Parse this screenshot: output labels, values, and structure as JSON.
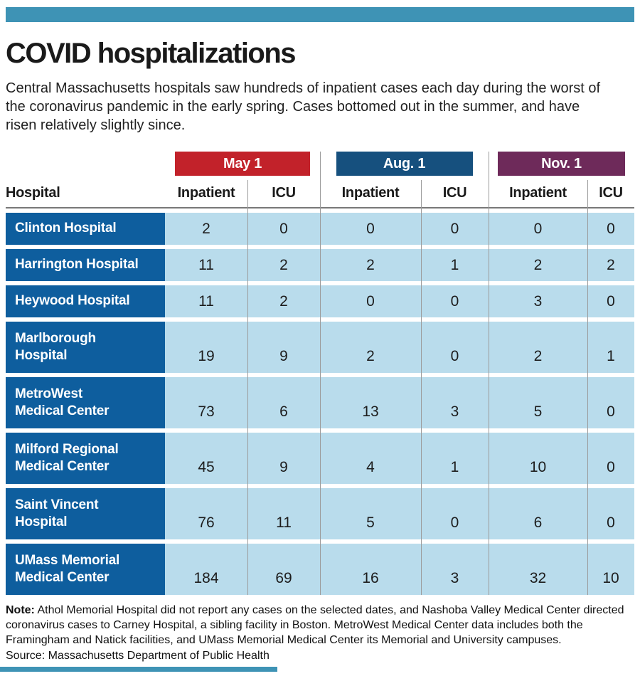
{
  "page": {
    "title": "COVID hospitalizations",
    "intro": "Central Massachusetts hospitals saw hundreds of inpatient cases each day during the worst of the coronavirus pandemic in the early spring. Cases bottomed out in the summer, and have risen relatively slightly since.",
    "note_label": "Note:",
    "note_text": " Athol Memorial Hospital did not report any cases on the selected dates, and Nashoba Valley Medical Center directed coronavirus cases to Carney Hospital, a sibling facility in Boston. MetroWest Medical Center data includes both the Framingham and Natick facilities, and UMass Memorial Medical Center its Memorial and University campuses.",
    "source": "Source: Massachusetts Department of Public Health"
  },
  "colors": {
    "accent_teal": "#3E93B5",
    "may_red": "#C2222A",
    "aug_navy": "#16507E",
    "nov_purple": "#6E2A5A",
    "hospital_cell_blue": "#0E5E9E",
    "value_cell_blue": "#B9DCEC",
    "divider_gray": "#9B9B9B"
  },
  "chart_data": {
    "type": "table",
    "title": "COVID hospitalizations",
    "row_header": "Hospital",
    "column_groups": [
      "May 1",
      "Aug. 1",
      "Nov. 1"
    ],
    "sub_columns": [
      "Inpatient",
      "ICU"
    ],
    "columns": [
      "Hospital",
      "May 1 Inpatient",
      "May 1 ICU",
      "Aug. 1 Inpatient",
      "Aug. 1 ICU",
      "Nov. 1 Inpatient",
      "Nov. 1 ICU"
    ],
    "rows": [
      {
        "hospital": "Clinton Hospital",
        "lines": [
          "Clinton Hospital"
        ],
        "values": [
          2,
          0,
          0,
          0,
          0,
          0
        ]
      },
      {
        "hospital": "Harrington Hospital",
        "lines": [
          "Harrington Hospital"
        ],
        "values": [
          11,
          2,
          2,
          1,
          2,
          2
        ]
      },
      {
        "hospital": "Heywood Hospital",
        "lines": [
          "Heywood Hospital"
        ],
        "values": [
          11,
          2,
          0,
          0,
          3,
          0
        ]
      },
      {
        "hospital": "Marlborough Hospital",
        "lines": [
          "Marlborough",
          "Hospital"
        ],
        "values": [
          19,
          9,
          2,
          0,
          2,
          1
        ]
      },
      {
        "hospital": "MetroWest Medical Center",
        "lines": [
          "MetroWest",
          "Medical Center"
        ],
        "values": [
          73,
          6,
          13,
          3,
          5,
          0
        ]
      },
      {
        "hospital": "Milford Regional Medical Center",
        "lines": [
          "Milford Regional",
          "Medical Center"
        ],
        "values": [
          45,
          9,
          4,
          1,
          10,
          0
        ]
      },
      {
        "hospital": "Saint Vincent Hospital",
        "lines": [
          "Saint Vincent",
          "Hospital"
        ],
        "values": [
          76,
          11,
          5,
          0,
          6,
          0
        ]
      },
      {
        "hospital": "UMass Memorial Medical Center",
        "lines": [
          "UMass Memorial",
          "Medical Center"
        ],
        "values": [
          184,
          69,
          16,
          3,
          32,
          10
        ]
      }
    ]
  }
}
